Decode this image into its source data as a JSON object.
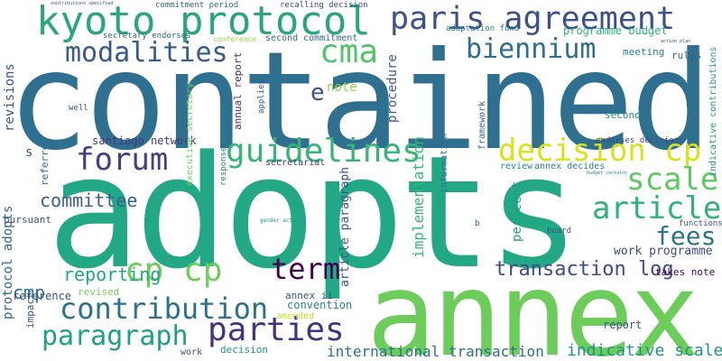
{
  "words": [
    {
      "text": "contained",
      "color": "#2f6f8f"
    },
    {
      "text": "adopts",
      "color": "#22a884"
    },
    {
      "text": "annex",
      "color": "#6ccd5a"
    },
    {
      "text": "kyoto protocol",
      "color": "#2aa67e"
    },
    {
      "text": "paris agreement",
      "color": "#3b518b"
    },
    {
      "text": "decision cp",
      "color": "#d8e219"
    },
    {
      "text": "biennium",
      "color": "#2e6e8e"
    },
    {
      "text": "modalities",
      "color": "#38598c"
    },
    {
      "text": "cma",
      "color": "#52c569"
    },
    {
      "text": "guidelines",
      "color": "#36b677"
    },
    {
      "text": "forum",
      "color": "#433e85"
    },
    {
      "text": "scale",
      "color": "#5ec962"
    },
    {
      "text": "article",
      "color": "#2db27d"
    },
    {
      "text": "cp cp",
      "color": "#6ccd5a"
    },
    {
      "text": "contribution",
      "color": "#2c728e"
    },
    {
      "text": "parties",
      "color": "#46337f"
    },
    {
      "text": "paragraph",
      "color": "#1fa088"
    },
    {
      "text": "fees",
      "color": "#2c728e"
    },
    {
      "text": "term",
      "color": "#440154"
    },
    {
      "text": "transaction log",
      "color": "#3e4a89"
    },
    {
      "text": "committee",
      "color": "#355f8d"
    },
    {
      "text": "reporting",
      "color": "#22a884"
    },
    {
      "text": "cmp",
      "color": "#2c728e"
    },
    {
      "text": "international transaction",
      "color": "#2e6e8e"
    },
    {
      "text": "indicative scale",
      "color": "#21918c"
    },
    {
      "text": "work programme",
      "color": "#3e4a89"
    },
    {
      "text": "santiago network",
      "color": "#453781"
    },
    {
      "text": "implementation",
      "color": "#35b779"
    },
    {
      "text": "per cent",
      "color": "#1f9a8a"
    },
    {
      "text": "procedure",
      "color": "#365d8d"
    },
    {
      "text": "revisions",
      "color": "#39568c"
    },
    {
      "text": "annual report",
      "color": "#481f70"
    },
    {
      "text": "programme budget",
      "color": "#2db27d"
    },
    {
      "text": "article paragraph",
      "color": "#3b528b"
    },
    {
      "text": "protocol adopts",
      "color": "#31688e"
    },
    {
      "text": "e",
      "color": "#3b528b"
    },
    {
      "text": "s",
      "color": "#3b528b"
    },
    {
      "text": "note",
      "color": "#8fd744"
    },
    {
      "text": "second commitment",
      "color": "#31688e"
    },
    {
      "text": "commitment period",
      "color": "#31688e"
    },
    {
      "text": "recalling decision",
      "color": "#3e4a89"
    },
    {
      "text": "secretary endorses",
      "color": "#31688e"
    },
    {
      "text": "adaptation fund",
      "color": "#26828e"
    },
    {
      "text": "meeting",
      "color": "#26828e"
    },
    {
      "text": "rules",
      "color": "#31688e"
    },
    {
      "text": "second",
      "color": "#21918c"
    },
    {
      "text": "indicative contributions",
      "color": "#1f988b"
    },
    {
      "text": "annex decides",
      "color": "#277f8e"
    },
    {
      "text": "endorses decision",
      "color": "#3e4989"
    },
    {
      "text": "review",
      "color": "#228c8d"
    },
    {
      "text": "framework",
      "color": "#31688e"
    },
    {
      "text": "referred",
      "color": "#2c728e"
    },
    {
      "text": "secretariat",
      "color": "#453882"
    },
    {
      "text": "pursuant",
      "color": "#3b528b"
    },
    {
      "text": "reference",
      "color": "#3b528b"
    },
    {
      "text": "revised",
      "color": "#73d056"
    },
    {
      "text": "impact",
      "color": "#3b528b"
    },
    {
      "text": "convention",
      "color": "#26828e"
    },
    {
      "text": "annex ii",
      "color": "#3b528b"
    },
    {
      "text": "amended",
      "color": "#c2df23"
    },
    {
      "text": "decision",
      "color": "#1f988b"
    },
    {
      "text": "work",
      "color": "#3b528b"
    },
    {
      "text": "report",
      "color": "#3b528b"
    },
    {
      "text": "takes note",
      "color": "#440154"
    },
    {
      "text": "information",
      "color": "#2c728e"
    },
    {
      "text": "board",
      "color": "#3b528b"
    },
    {
      "text": "functions",
      "color": "#3b528b"
    },
    {
      "text": "executive secretary",
      "color": "#73d056"
    },
    {
      "text": "response measures",
      "color": "#26828e"
    },
    {
      "text": "applies",
      "color": "#3b528b"
    },
    {
      "text": "conference",
      "color": "#8fd744"
    },
    {
      "text": "well",
      "color": "#3b528b"
    },
    {
      "text": "b",
      "color": "#3b528b"
    },
    {
      "text": "gender action",
      "color": "#1f988b"
    },
    {
      "text": "budget contains",
      "color": "#26828e"
    },
    {
      "text": "action plan",
      "color": "#3b528b"
    },
    {
      "text": "contributions specified",
      "color": "#3b528b"
    }
  ]
}
